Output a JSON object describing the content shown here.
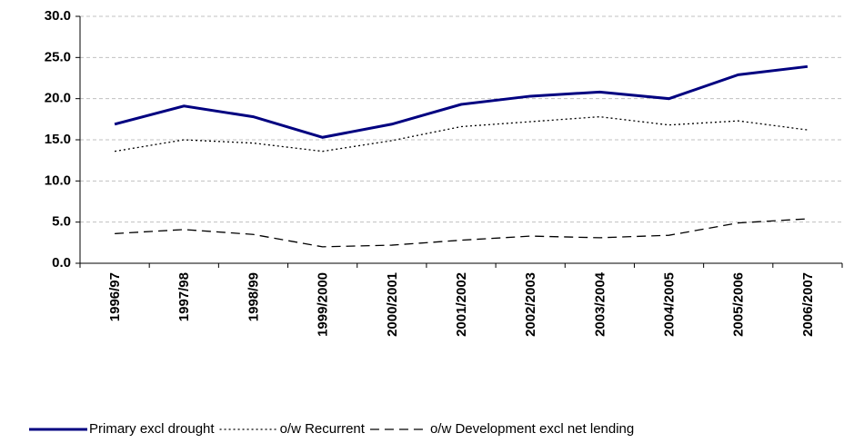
{
  "chart_data": {
    "type": "line",
    "categories": [
      "1996/97",
      "1997/98",
      "1998/99",
      "1999/2000",
      "2000/2001",
      "2001/2002",
      "2002/2003",
      "2003/2004",
      "2004/2005",
      "2005/2006",
      "2006/2007"
    ],
    "series": [
      {
        "name": "Primary excl drought",
        "color": "#000080",
        "dash": "solid",
        "values": [
          16.9,
          19.1,
          17.8,
          15.3,
          16.9,
          19.3,
          20.3,
          20.8,
          20.0,
          22.9,
          23.9
        ]
      },
      {
        "name": "o/w  Recurrent",
        "color": "#000000",
        "dash": "dotted",
        "values": [
          13.6,
          15.0,
          14.6,
          13.6,
          14.9,
          16.6,
          17.2,
          17.8,
          16.8,
          17.3,
          16.2
        ]
      },
      {
        "name": "o/w  Development excl net lending",
        "color": "#000000",
        "dash": "dashed",
        "values": [
          3.6,
          4.1,
          3.5,
          2.0,
          2.2,
          2.8,
          3.3,
          3.1,
          3.4,
          4.9,
          5.4
        ]
      }
    ],
    "ylim": [
      0,
      30
    ],
    "yticks": [
      {
        "value": 0,
        "label": "0.0"
      },
      {
        "value": 5,
        "label": "5.0"
      },
      {
        "value": 10,
        "label": "10.0"
      },
      {
        "value": 15,
        "label": "15.0"
      },
      {
        "value": 20,
        "label": "20.0"
      },
      {
        "value": 25,
        "label": "25.0"
      },
      {
        "value": 30,
        "label": "30.0"
      }
    ],
    "grid": true
  }
}
